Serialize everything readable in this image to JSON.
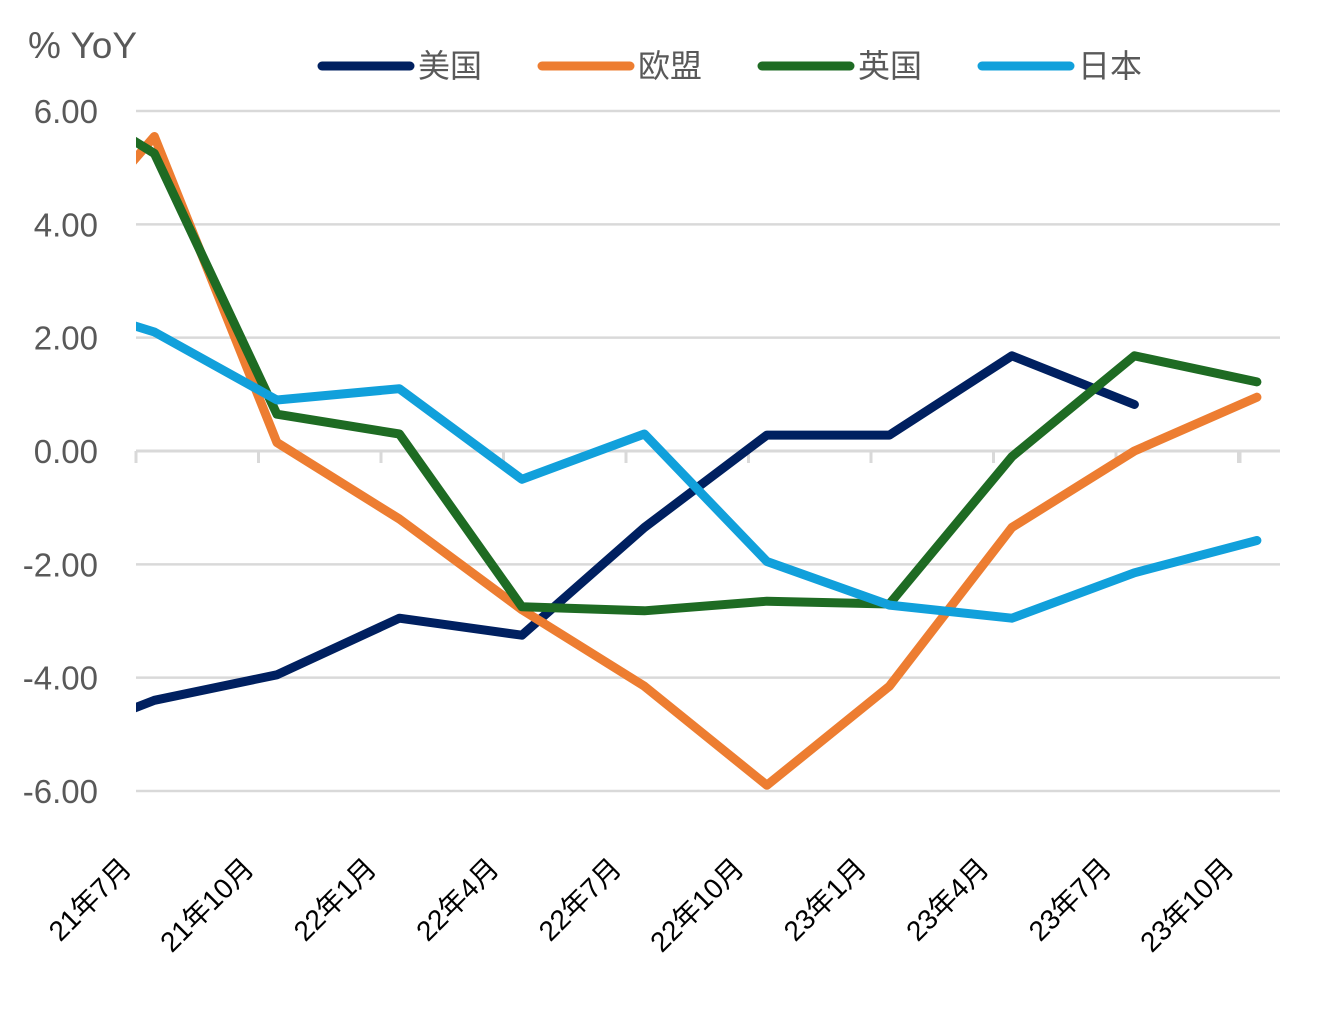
{
  "chart_data": {
    "type": "line",
    "ylabel": "% YoY",
    "ylim": [
      -6,
      6
    ],
    "yticks": [
      "6.00",
      "4.00",
      "2.00",
      "0.00",
      "-2.00",
      "-4.00",
      "-6.00"
    ],
    "ytick_values": [
      6,
      4,
      2,
      0,
      -2,
      -4,
      -6
    ],
    "categories": [
      "21年7月",
      "21年10月",
      "22年1月",
      "22年4月",
      "22年7月",
      "22年10月",
      "23年1月",
      "23年4月",
      "23年7月",
      "23年10月"
    ],
    "grid": true,
    "legend_position": "top",
    "series": [
      {
        "name": "美国",
        "color": "#002060",
        "points": [
          [
            -0.15,
            -4.65
          ],
          [
            0.15,
            -4.4
          ],
          [
            1.15,
            -3.95
          ],
          [
            2.15,
            -2.95
          ],
          [
            3.15,
            -3.25
          ],
          [
            4.15,
            -1.35
          ],
          [
            5.15,
            0.28
          ],
          [
            6.15,
            0.28
          ],
          [
            7.15,
            1.68
          ],
          [
            8.15,
            0.82
          ]
        ]
      },
      {
        "name": "欧盟",
        "color": "#ED7D31",
        "points": [
          [
            -0.15,
            4.8
          ],
          [
            0.15,
            5.55
          ],
          [
            1.15,
            0.15
          ],
          [
            2.15,
            -1.2
          ],
          [
            3.15,
            -2.8
          ],
          [
            4.15,
            -4.15
          ],
          [
            5.15,
            -5.9
          ],
          [
            6.15,
            -4.15
          ],
          [
            7.15,
            -1.35
          ],
          [
            8.15,
            0.0
          ],
          [
            9.15,
            0.95
          ]
        ]
      },
      {
        "name": "英国",
        "color": "#1E6B23",
        "points": [
          [
            -0.15,
            5.65
          ],
          [
            0.15,
            5.25
          ],
          [
            1.15,
            0.65
          ],
          [
            2.15,
            0.3
          ],
          [
            3.15,
            -2.75
          ],
          [
            4.15,
            -2.82
          ],
          [
            5.15,
            -2.65
          ],
          [
            6.15,
            -2.7
          ],
          [
            7.15,
            -0.1
          ],
          [
            8.15,
            1.68
          ],
          [
            9.15,
            1.22
          ]
        ]
      },
      {
        "name": "日本",
        "color": "#11A0DB",
        "points": [
          [
            -0.15,
            2.3
          ],
          [
            0.15,
            2.1
          ],
          [
            1.15,
            0.9
          ],
          [
            2.15,
            1.1
          ],
          [
            3.15,
            -0.5
          ],
          [
            4.15,
            0.3
          ],
          [
            5.15,
            -1.95
          ],
          [
            6.15,
            -2.72
          ],
          [
            7.15,
            -2.95
          ],
          [
            8.15,
            -2.15
          ],
          [
            9.15,
            -1.58
          ]
        ]
      }
    ]
  }
}
